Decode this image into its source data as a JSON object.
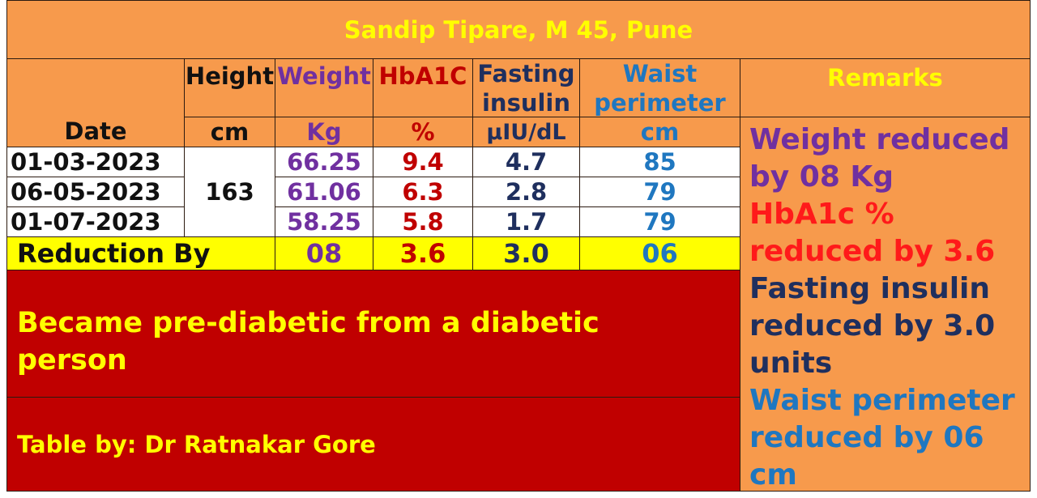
{
  "title": "Sandip Tipare, M 45, Pune",
  "headers": {
    "height": "Height",
    "weight": "Weight",
    "hba1c": "HbA1C",
    "fasting_line1": "Fasting",
    "fasting_line2": "insulin",
    "waist_line1": "Waist",
    "waist_line2": "perimeter",
    "remarks": "Remarks"
  },
  "units": {
    "date": "Date",
    "height": "cm",
    "weight": "Kg",
    "hba1c": "%",
    "fasting": "μIU/dL",
    "waist": "cm"
  },
  "height_value": "163",
  "rows": [
    {
      "date": "01-03-2023",
      "weight": "66.25",
      "hba1c": "9.4",
      "fasting": "4.7",
      "waist": "85"
    },
    {
      "date": "06-05-2023",
      "weight": "61.06",
      "hba1c": "6.3",
      "fasting": "2.8",
      "waist": "79"
    },
    {
      "date": "01-07-2023",
      "weight": "58.25",
      "hba1c": "5.8",
      "fasting": "1.7",
      "waist": "79"
    }
  ],
  "reduction": {
    "label": "Reduction By",
    "weight": "08",
    "hba1c": "3.6",
    "fasting": "3.0",
    "waist": "06"
  },
  "summary": "Became pre-diabetic from a diabetic person",
  "credit": "Table by: Dr Ratnakar Gore",
  "remarks": {
    "weight": "Weight reduced by 08 Kg",
    "hba1c": "HbA1c % reduced by 3.6",
    "fasting": "Fasting insulin reduced by 3.0 units",
    "waist": "Waist perimeter reduced by 06 cm"
  },
  "colors": {
    "orange": "#f79a4c",
    "yellow": "#ffff00",
    "red": "#c00000",
    "purple": "#7030a0",
    "navy": "#1f2f5e",
    "blue": "#1f77c0"
  }
}
